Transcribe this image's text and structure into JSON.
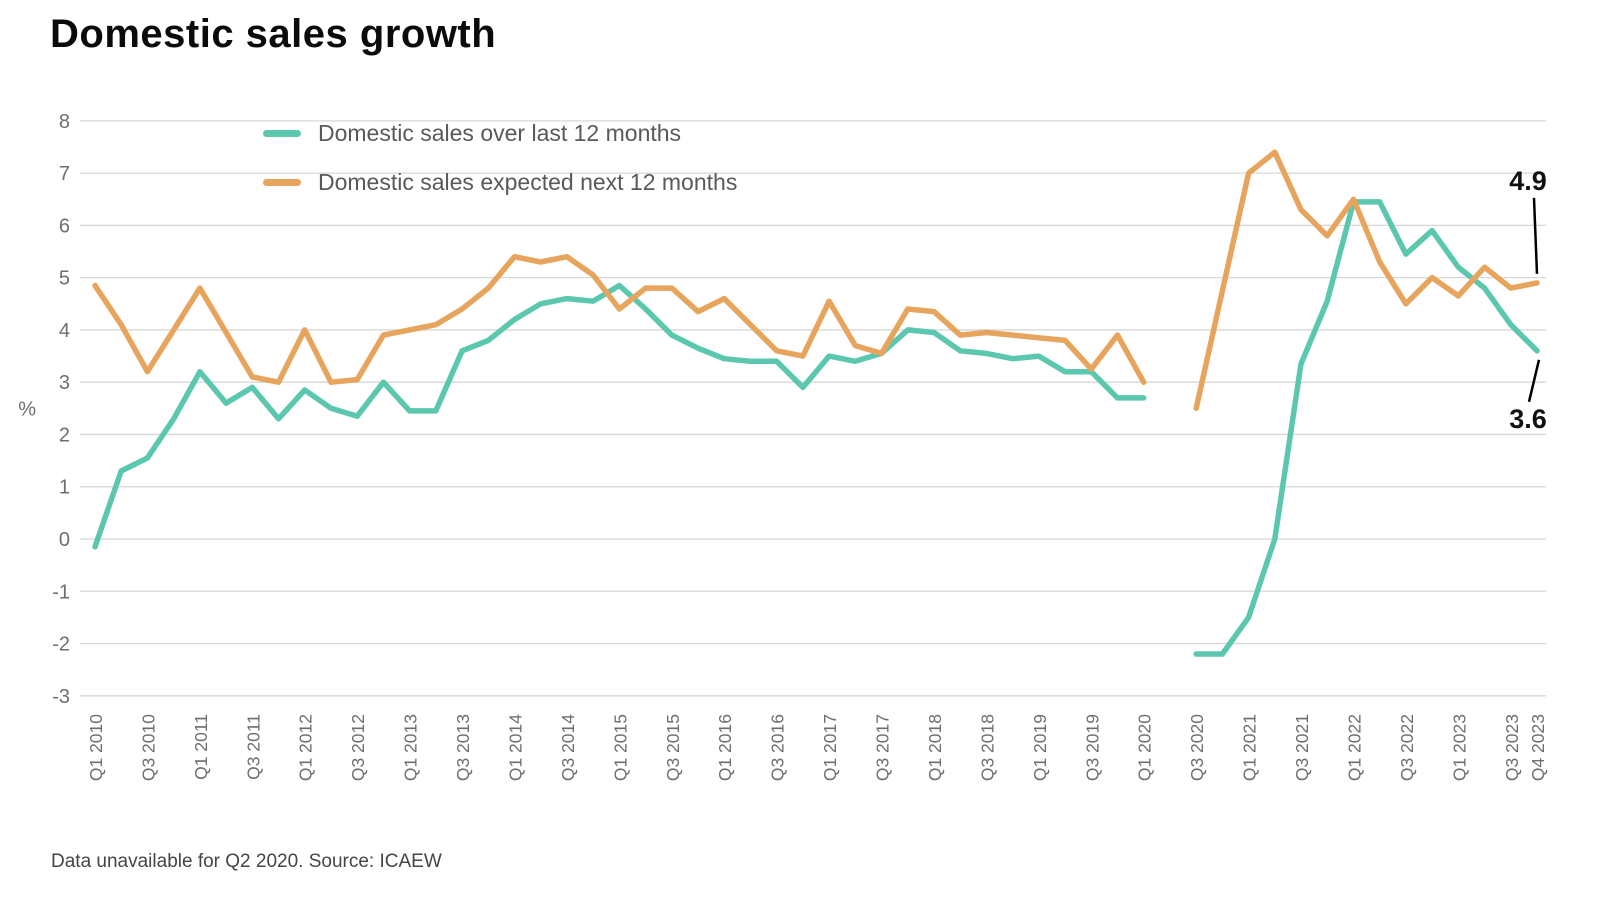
{
  "header": {
    "title": "Domestic sales growth"
  },
  "footnote": "Data unavailable for Q2 2020. Source: ICAEW",
  "colors": {
    "background": "#ffffff",
    "teal": "#5BC7AE",
    "orange": "#E7A45C",
    "grid": "#D7D7D7",
    "axis_text": "#6E6E6E",
    "legend_text": "#58595B",
    "title_text": "#0B0B0B",
    "footnote_text": "#454545",
    "annotation_text": "#111111",
    "annotation_line": "#000000"
  },
  "chart_data": {
    "type": "line",
    "title": "Domestic sales growth",
    "xlabel": "",
    "ylabel": "%",
    "ylim": [
      -3,
      8
    ],
    "yticks": [
      8,
      7,
      6,
      5,
      4,
      3,
      2,
      1,
      0,
      -1,
      -2,
      -3
    ],
    "grid": "horizontal",
    "legend_position": "top-left-inside",
    "missing_data_note": "Data unavailable for Q2 2020. Source: ICAEW",
    "missing_categories": [
      "Q2 2020"
    ],
    "categories": [
      "Q1 2010",
      "Q2 2010",
      "Q3 2010",
      "Q4 2010",
      "Q1 2011",
      "Q2 2011",
      "Q3 2011",
      "Q4 2011",
      "Q1 2012",
      "Q2 2012",
      "Q3 2012",
      "Q4 2012",
      "Q1 2013",
      "Q2 2013",
      "Q3 2013",
      "Q4 2013",
      "Q1 2014",
      "Q2 2014",
      "Q3 2014",
      "Q4 2014",
      "Q1 2015",
      "Q2 2015",
      "Q3 2015",
      "Q4 2015",
      "Q1 2016",
      "Q2 2016",
      "Q3 2016",
      "Q4 2016",
      "Q1 2017",
      "Q2 2017",
      "Q3 2017",
      "Q4 2017",
      "Q1 2018",
      "Q2 2018",
      "Q3 2018",
      "Q4 2018",
      "Q1 2019",
      "Q2 2019",
      "Q3 2019",
      "Q4 2019",
      "Q1 2020",
      "Q2 2020",
      "Q3 2020",
      "Q4 2020",
      "Q1 2021",
      "Q2 2021",
      "Q3 2021",
      "Q4 2021",
      "Q1 2022",
      "Q2 2022",
      "Q3 2022",
      "Q4 2022",
      "Q1 2023",
      "Q2 2023",
      "Q3 2023",
      "Q4 2023"
    ],
    "x_tick_labels": [
      "Q1 2010",
      "Q3 2010",
      "Q1 2011",
      "Q3 2011",
      "Q1 2012",
      "Q3 2012",
      "Q1 2013",
      "Q3 2013",
      "Q1 2014",
      "Q3 2014",
      "Q1 2015",
      "Q3 2015",
      "Q1 2016",
      "Q3 2016",
      "Q1 2017",
      "Q3 2017",
      "Q1 2018",
      "Q3 2018",
      "Q1 2019",
      "Q3 2019",
      "Q1 2020",
      "Q3 2020",
      "Q1 2021",
      "Q3 2021",
      "Q1 2022",
      "Q3 2022",
      "Q1 2023",
      "Q3 2023",
      "Q4 2023"
    ],
    "series": [
      {
        "name": "Domestic sales over last 12 months",
        "color": "#5BC7AE",
        "values": [
          -0.15,
          1.3,
          1.55,
          2.3,
          3.2,
          2.6,
          2.9,
          2.3,
          2.85,
          2.5,
          2.35,
          3.0,
          2.45,
          2.45,
          3.6,
          3.8,
          4.2,
          4.5,
          4.6,
          4.55,
          4.85,
          4.4,
          3.9,
          3.65,
          3.45,
          3.4,
          3.4,
          2.9,
          3.5,
          3.4,
          3.55,
          4.0,
          3.95,
          3.6,
          3.55,
          3.45,
          3.5,
          3.2,
          3.2,
          2.7,
          2.7,
          null,
          -2.2,
          -2.2,
          -1.5,
          0.0,
          3.35,
          4.55,
          6.45,
          6.45,
          5.45,
          5.9,
          5.2,
          4.8,
          4.1,
          3.6
        ]
      },
      {
        "name": "Domestic sales expected next 12 months",
        "color": "#E7A45C",
        "values": [
          4.85,
          4.1,
          3.2,
          4.0,
          4.8,
          3.95,
          3.1,
          3.0,
          4.0,
          3.0,
          3.05,
          3.9,
          4.0,
          4.1,
          4.4,
          4.8,
          5.4,
          5.3,
          5.4,
          5.05,
          4.4,
          4.8,
          4.8,
          4.35,
          4.6,
          4.1,
          3.6,
          3.5,
          4.55,
          3.7,
          3.55,
          4.4,
          4.35,
          3.9,
          3.95,
          3.9,
          3.85,
          3.8,
          3.25,
          3.9,
          3.0,
          null,
          2.5,
          4.75,
          7.0,
          7.4,
          6.3,
          5.8,
          6.5,
          5.3,
          4.5,
          5.0,
          4.65,
          5.2,
          4.8,
          4.9
        ]
      }
    ],
    "annotations": [
      {
        "text": "4.9",
        "category": "Q4 2023",
        "value": 4.9,
        "series": "Domestic sales expected next 12 months",
        "position": "above"
      },
      {
        "text": "3.6",
        "category": "Q4 2023",
        "value": 3.6,
        "series": "Domestic sales over last 12 months",
        "position": "below"
      }
    ]
  }
}
